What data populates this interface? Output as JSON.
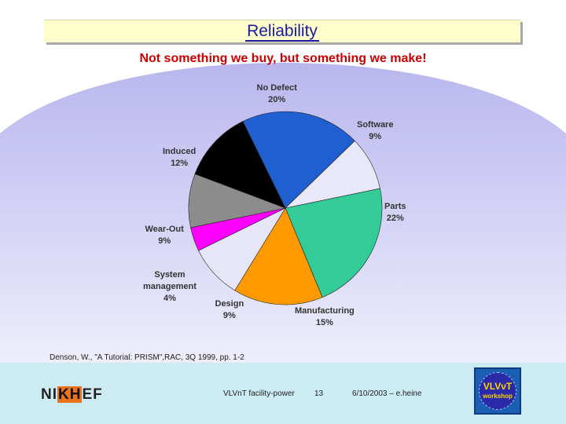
{
  "slide": {
    "title": "Reliability",
    "subtitle": "Not something we buy, but something we make!",
    "citation": "Denson, W., \"A Tutorial: PRISM\",RAC, 3Q 1999, pp. 1-2"
  },
  "footer": {
    "logo_left": "NI",
    "logo_mid": "KH",
    "logo_right": "EF",
    "center_text": "VLVnT facility-power",
    "page_number": "13",
    "date_author": "6/10/2003 – e.heine",
    "badge_main": "VLVνT",
    "badge_sub": "workshop"
  },
  "colors": {
    "dome_top": "#b9b6ee",
    "dome_bottom": "#eeeefc",
    "title_text": "#1a1aa0",
    "subtitle_text": "#cc0000",
    "footer_bg": "#ccebf3"
  },
  "chart_data": {
    "type": "pie",
    "title": "",
    "slices": [
      {
        "label": "No Defect",
        "value": 20,
        "pct_label": "20%",
        "color": "#1f5fcf"
      },
      {
        "label": "Software",
        "value": 9,
        "pct_label": "9%",
        "color": "#e8e8fa"
      },
      {
        "label": "Parts",
        "value": 22,
        "pct_label": "22%",
        "color": "#33cc99"
      },
      {
        "label": "Manufacturing",
        "value": 15,
        "pct_label": "15%",
        "color": "#ff9900"
      },
      {
        "label": "Design",
        "value": 9,
        "pct_label": "9%",
        "color": "#e6e6f8"
      },
      {
        "label": "System\nmanagement",
        "value": 4,
        "pct_label": "4%",
        "color": "#ff00ff"
      },
      {
        "label": "Wear-Out",
        "value": 9,
        "pct_label": "9%",
        "color": "#8c8c8c"
      },
      {
        "label": "Induced",
        "value": 12,
        "pct_label": "12%",
        "color": "#000000"
      }
    ],
    "legend": "none"
  }
}
